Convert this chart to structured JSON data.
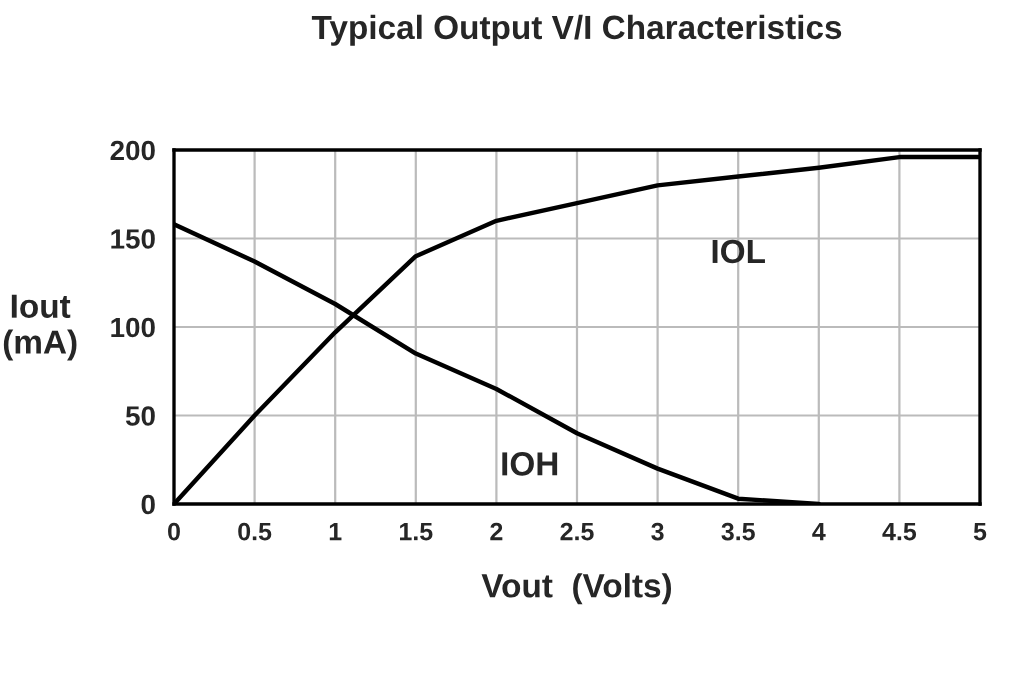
{
  "chart_data": {
    "type": "line",
    "title": "Typical Output V/I Characteristics",
    "xlabel": "Vout  (Volts)",
    "ylabel": "Iout\n(mA)",
    "x": [
      0,
      0.5,
      1,
      1.5,
      2,
      2.5,
      3,
      3.5,
      4,
      4.5,
      5
    ],
    "series": [
      {
        "name": "IOL",
        "color": "#000000",
        "values": [
          0,
          50,
          97,
          140,
          160,
          170,
          180,
          185,
          190,
          196,
          196
        ]
      },
      {
        "name": "IOH",
        "color": "#000000",
        "values": [
          158,
          137,
          113,
          85,
          65,
          40,
          20,
          3,
          0,
          null,
          null
        ]
      }
    ],
    "xlim": [
      0,
      5
    ],
    "ylim": [
      0,
      200
    ],
    "xticks": [
      0,
      0.5,
      1,
      1.5,
      2,
      2.5,
      3,
      3.5,
      4,
      4.5,
      5
    ],
    "yticks": [
      0,
      50,
      100,
      150,
      200
    ],
    "grid": true,
    "legend": false,
    "marker": "none",
    "line_style": "solid"
  }
}
